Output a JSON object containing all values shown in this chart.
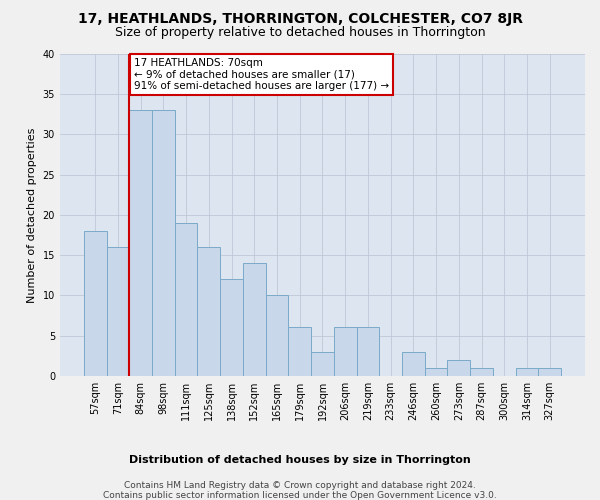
{
  "title": "17, HEATHLANDS, THORRINGTON, COLCHESTER, CO7 8JR",
  "subtitle": "Size of property relative to detached houses in Thorrington",
  "xlabel": "Distribution of detached houses by size in Thorrington",
  "ylabel": "Number of detached properties",
  "categories": [
    "57sqm",
    "71sqm",
    "84sqm",
    "98sqm",
    "111sqm",
    "125sqm",
    "138sqm",
    "152sqm",
    "165sqm",
    "179sqm",
    "192sqm",
    "206sqm",
    "219sqm",
    "233sqm",
    "246sqm",
    "260sqm",
    "273sqm",
    "287sqm",
    "300sqm",
    "314sqm",
    "327sqm"
  ],
  "values": [
    18,
    16,
    33,
    33,
    19,
    16,
    12,
    14,
    10,
    6,
    3,
    6,
    6,
    0,
    3,
    1,
    2,
    1,
    0,
    1,
    1
  ],
  "bar_color": "#c8d8ea",
  "bar_edge_color": "#7aaac8",
  "vline_color": "#cc0000",
  "vline_x": 1.5,
  "annotation_text": "17 HEATHLANDS: 70sqm\n← 9% of detached houses are smaller (17)\n91% of semi-detached houses are larger (177) →",
  "annotation_box_color": "#ffffff",
  "annotation_box_edge": "#cc0000",
  "ylim": [
    0,
    40
  ],
  "yticks": [
    0,
    5,
    10,
    15,
    20,
    25,
    30,
    35,
    40
  ],
  "grid_color": "#c0c8d8",
  "background_color": "#dde6f0",
  "fig_color": "#f0f0f0",
  "footer_line1": "Contains HM Land Registry data © Crown copyright and database right 2024.",
  "footer_line2": "Contains public sector information licensed under the Open Government Licence v3.0.",
  "title_fontsize": 10,
  "subtitle_fontsize": 9,
  "xlabel_fontsize": 8,
  "ylabel_fontsize": 8,
  "tick_fontsize": 7,
  "annotation_fontsize": 7.5,
  "footer_fontsize": 6.5
}
